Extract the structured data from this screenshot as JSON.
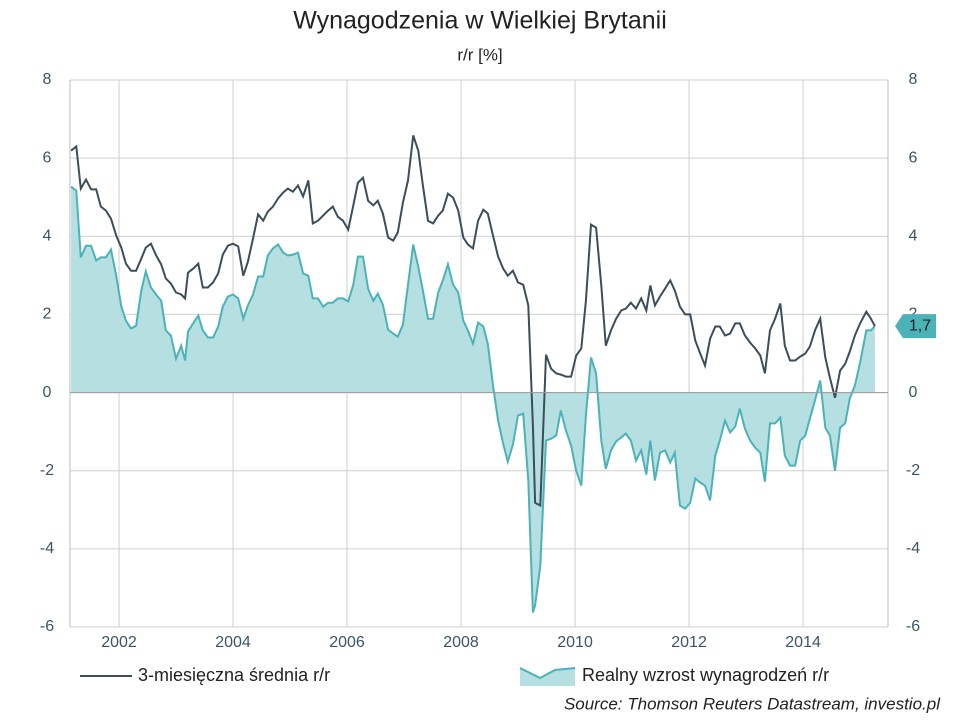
{
  "chart_data": {
    "type": "line_area",
    "title": "Wynagodzenia w Wielkiej Brytanii",
    "subtitle": "r/r [%]",
    "source": "Source: Thomson Reuters Datastream, investio.pl",
    "end_label": "1,7",
    "xlim": [
      2001.14,
      2015.49
    ],
    "xticks": [
      2002,
      2004,
      2006,
      2008,
      2010,
      2012,
      2014
    ],
    "ylim": [
      -6,
      8
    ],
    "yticks": [
      -6,
      -4,
      -2,
      0,
      2,
      4,
      6,
      8
    ],
    "y2lim": [
      -6,
      8
    ],
    "y2ticks": [
      -6,
      -4,
      -2,
      0,
      2,
      4,
      6,
      8
    ],
    "grid": true,
    "x": [
      2001.16,
      2001.25,
      2001.33,
      2001.42,
      2001.51,
      2001.6,
      2001.68,
      2001.77,
      2001.86,
      2001.95,
      2002.04,
      2002.12,
      2002.21,
      2002.3,
      2002.39,
      2002.47,
      2002.56,
      2002.65,
      2002.74,
      2002.82,
      2002.91,
      2003.0,
      2003.09,
      2003.16,
      2003.21,
      2003.3,
      2003.39,
      2003.47,
      2003.56,
      2003.65,
      2003.74,
      2003.82,
      2003.91,
      2004.0,
      2004.09,
      2004.18,
      2004.26,
      2004.35,
      2004.44,
      2004.53,
      2004.61,
      2004.7,
      2004.79,
      2004.88,
      2004.96,
      2005.05,
      2005.14,
      2005.23,
      2005.32,
      2005.4,
      2005.49,
      2005.58,
      2005.67,
      2005.75,
      2005.84,
      2005.93,
      2006.02,
      2006.11,
      2006.19,
      2006.28,
      2006.37,
      2006.46,
      2006.54,
      2006.63,
      2006.72,
      2006.81,
      2006.89,
      2006.98,
      2007.07,
      2007.16,
      2007.25,
      2007.33,
      2007.42,
      2007.51,
      2007.6,
      2007.68,
      2007.77,
      2007.86,
      2007.95,
      2008.04,
      2008.12,
      2008.21,
      2008.3,
      2008.39,
      2008.47,
      2008.56,
      2008.65,
      2008.74,
      2008.82,
      2008.91,
      2009.0,
      2009.09,
      2009.18,
      2009.26,
      2009.3,
      2009.39,
      2009.49,
      2009.58,
      2009.67,
      2009.75,
      2009.84,
      2009.93,
      2010.02,
      2010.11,
      2010.19,
      2010.28,
      2010.37,
      2010.46,
      2010.54,
      2010.63,
      2010.72,
      2010.81,
      2010.89,
      2010.98,
      2011.07,
      2011.16,
      2011.25,
      2011.32,
      2011.4,
      2011.49,
      2011.58,
      2011.67,
      2011.75,
      2011.84,
      2011.93,
      2012.02,
      2012.11,
      2012.19,
      2012.28,
      2012.37,
      2012.46,
      2012.54,
      2012.63,
      2012.72,
      2012.81,
      2012.89,
      2012.98,
      2013.07,
      2013.16,
      2013.25,
      2013.33,
      2013.42,
      2013.51,
      2013.6,
      2013.68,
      2013.77,
      2013.86,
      2013.95,
      2014.04,
      2014.12,
      2014.21,
      2014.3,
      2014.39,
      2014.47,
      2014.56,
      2014.65,
      2014.74,
      2014.82,
      2014.91,
      2015.0,
      2015.11,
      2015.19,
      2015.26
    ],
    "series": [
      {
        "name": "3-miesięczna średnia r/r",
        "color": "#3b4e5a",
        "style": "line",
        "values": [
          6.19,
          6.3,
          5.22,
          5.45,
          5.2,
          5.2,
          4.76,
          4.66,
          4.45,
          4.02,
          3.71,
          3.3,
          3.12,
          3.12,
          3.43,
          3.71,
          3.81,
          3.51,
          3.28,
          2.92,
          2.79,
          2.56,
          2.51,
          2.41,
          3.07,
          3.17,
          3.3,
          2.69,
          2.69,
          2.82,
          3.05,
          3.53,
          3.76,
          3.81,
          3.74,
          2.99,
          3.35,
          3.94,
          4.56,
          4.4,
          4.63,
          4.76,
          4.97,
          5.12,
          5.22,
          5.14,
          5.3,
          5.02,
          5.43,
          4.33,
          4.4,
          4.53,
          4.66,
          4.76,
          4.5,
          4.4,
          4.17,
          4.79,
          5.37,
          5.5,
          4.91,
          4.79,
          4.91,
          4.58,
          3.97,
          3.89,
          4.1,
          4.86,
          5.43,
          6.58,
          6.19,
          5.3,
          4.4,
          4.33,
          4.53,
          4.66,
          5.09,
          4.99,
          4.66,
          3.97,
          3.79,
          3.69,
          4.4,
          4.68,
          4.58,
          4.02,
          3.48,
          3.17,
          2.99,
          3.12,
          2.82,
          2.76,
          2.23,
          -0.84,
          -2.82,
          -2.89,
          0.97,
          0.61,
          0.49,
          0.46,
          0.41,
          0.41,
          0.95,
          1.13,
          2.35,
          4.3,
          4.22,
          2.74,
          1.2,
          1.59,
          1.89,
          2.1,
          2.15,
          2.3,
          2.15,
          2.41,
          2.1,
          2.74,
          2.23,
          2.46,
          2.66,
          2.87,
          2.61,
          2.2,
          2.0,
          2.0,
          1.33,
          1.02,
          0.69,
          1.38,
          1.69,
          1.69,
          1.46,
          1.51,
          1.77,
          1.77,
          1.46,
          1.28,
          1.13,
          0.95,
          0.49,
          1.59,
          1.89,
          2.28,
          1.2,
          0.82,
          0.82,
          0.92,
          1.0,
          1.18,
          1.59,
          1.89,
          0.9,
          0.38,
          -0.13,
          0.56,
          0.74,
          1.05,
          1.46,
          1.77,
          2.07,
          1.89,
          1.7
        ]
      },
      {
        "name": "Realny wzrost wynagrodzeń r/r",
        "color": "#4bb3b8",
        "fill": "#b5dfe1",
        "style": "area",
        "values": [
          5.27,
          5.17,
          3.46,
          3.76,
          3.76,
          3.38,
          3.46,
          3.46,
          3.66,
          2.99,
          2.2,
          1.84,
          1.64,
          1.71,
          2.61,
          3.1,
          2.69,
          2.51,
          2.35,
          1.59,
          1.46,
          0.87,
          1.2,
          0.82,
          1.56,
          1.77,
          1.97,
          1.59,
          1.41,
          1.41,
          1.69,
          2.2,
          2.46,
          2.51,
          2.41,
          1.89,
          2.23,
          2.51,
          2.97,
          2.97,
          3.51,
          3.69,
          3.79,
          3.58,
          3.51,
          3.53,
          3.58,
          3.05,
          2.99,
          2.41,
          2.41,
          2.2,
          2.3,
          2.3,
          2.41,
          2.41,
          2.33,
          2.76,
          3.48,
          3.48,
          2.66,
          2.35,
          2.53,
          2.25,
          1.61,
          1.51,
          1.43,
          1.74,
          2.76,
          3.79,
          3.22,
          2.61,
          1.89,
          1.89,
          2.56,
          2.87,
          3.28,
          2.76,
          2.56,
          1.84,
          1.59,
          1.25,
          1.79,
          1.69,
          1.25,
          0.18,
          -0.72,
          -1.31,
          -1.77,
          -1.33,
          -0.59,
          -0.54,
          -2.25,
          -5.63,
          -5.45,
          -4.43,
          -1.23,
          -1.18,
          -1.1,
          -0.46,
          -0.97,
          -1.36,
          -2.0,
          -2.38,
          -0.59,
          0.9,
          0.49,
          -1.23,
          -1.95,
          -1.48,
          -1.25,
          -1.15,
          -1.05,
          -1.23,
          -1.74,
          -1.48,
          -2.1,
          -1.23,
          -2.25,
          -1.54,
          -1.48,
          -1.79,
          -1.54,
          -2.89,
          -2.97,
          -2.82,
          -2.2,
          -2.3,
          -2.38,
          -2.76,
          -1.61,
          -1.23,
          -0.72,
          -1.02,
          -0.87,
          -0.41,
          -0.92,
          -1.23,
          -1.41,
          -1.54,
          -2.28,
          -0.79,
          -0.79,
          -0.64,
          -1.61,
          -1.87,
          -1.87,
          -1.23,
          -1.1,
          -0.67,
          -0.2,
          0.31,
          -0.9,
          -1.1,
          -2.0,
          -0.9,
          -0.79,
          -0.15,
          0.18,
          0.77,
          1.59,
          1.59,
          1.7
        ]
      }
    ]
  }
}
